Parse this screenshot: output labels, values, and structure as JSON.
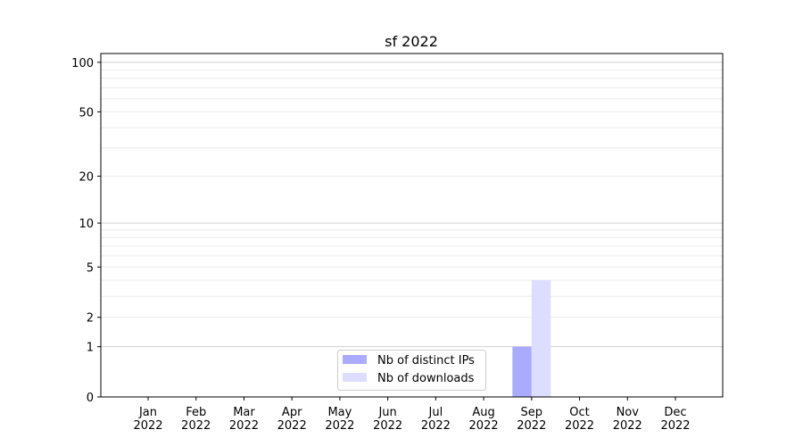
{
  "chart_data": {
    "type": "bar",
    "title": "sf 2022",
    "xlabel": "",
    "ylabel": "",
    "yscale": "log(1+y)",
    "ylim": [
      0,
      113
    ],
    "grid": true,
    "legend_position": "bottom-center",
    "categories": [
      "Jan\n2022",
      "Feb\n2022",
      "Mar\n2022",
      "Apr\n2022",
      "May\n2022",
      "Jun\n2022",
      "Jul\n2022",
      "Aug\n2022",
      "Sep\n2022",
      "Oct\n2022",
      "Nov\n2022",
      "Dec\n2022"
    ],
    "y_ticks": [
      0,
      1,
      2,
      5,
      10,
      20,
      50,
      100
    ],
    "series": [
      {
        "name": "Nb of distinct IPs",
        "color": "#aaaaff",
        "values": [
          0,
          0,
          0,
          0,
          0,
          0,
          0,
          0,
          1,
          0,
          0,
          0
        ]
      },
      {
        "name": "Nb of downloads",
        "color": "#ddddff",
        "values": [
          0,
          0,
          0,
          0,
          0,
          0,
          0,
          0,
          4,
          0,
          0,
          0
        ]
      }
    ]
  }
}
